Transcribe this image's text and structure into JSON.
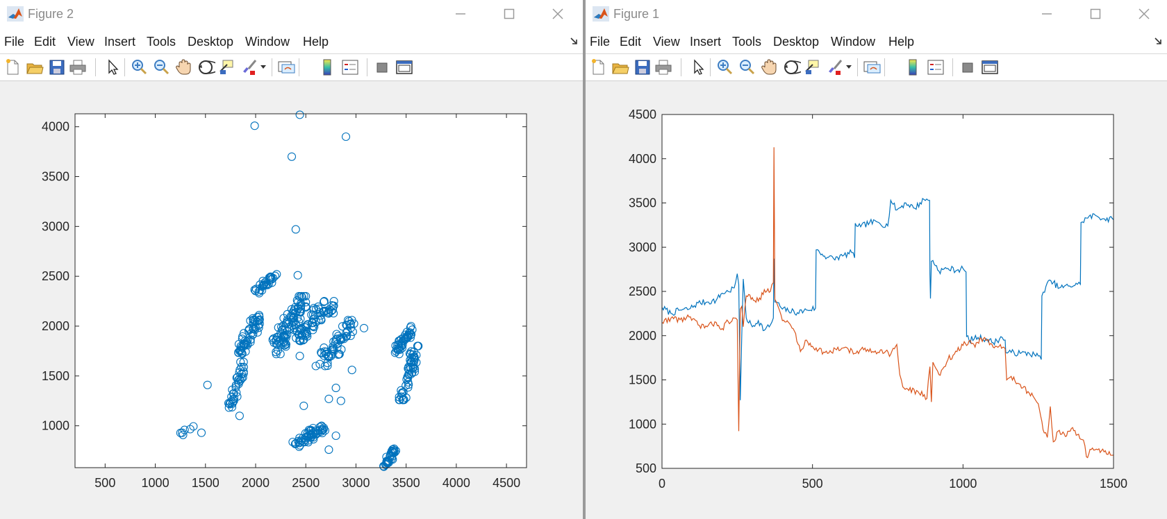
{
  "windows": [
    {
      "id": "left",
      "title": "Figure 2",
      "menus": [
        "File",
        "Edit",
        "View",
        "Insert",
        "Tools",
        "Desktop",
        "Window",
        "Help"
      ],
      "chart_data": {
        "type": "scatter",
        "title": "",
        "xlabel": "",
        "ylabel": "",
        "xlim": [
          200,
          4700
        ],
        "ylim": [
          580,
          4130
        ],
        "xticks": [
          500,
          1000,
          1500,
          2000,
          2500,
          3000,
          3500,
          4000,
          4500
        ],
        "yticks": [
          1000,
          1500,
          2000,
          2500,
          3000,
          3500,
          4000
        ],
        "grid": false,
        "marker_color": "#0072bd",
        "clusters": [
          {
            "x": [
              1250,
              1380
            ],
            "y": [
              900,
              1000
            ],
            "n": 6
          },
          {
            "x": [
              1730,
              1880
            ],
            "y": [
              1120,
              1640
            ],
            "n": 40
          },
          {
            "x": [
              1820,
              2040
            ],
            "y": [
              1700,
              2110
            ],
            "n": 55
          },
          {
            "x": [
              1990,
              2200
            ],
            "y": [
              2330,
              2520
            ],
            "n": 30
          },
          {
            "x": [
              2170,
              2500
            ],
            "y": [
              1720,
              2300
            ],
            "n": 90
          },
          {
            "x": [
              2350,
              2780
            ],
            "y": [
              1850,
              2250
            ],
            "n": 70
          },
          {
            "x": [
              2640,
              2980
            ],
            "y": [
              1600,
              2060
            ],
            "n": 60
          },
          {
            "x": [
              2370,
              2700
            ],
            "y": [
              790,
              1000
            ],
            "n": 55
          },
          {
            "x": [
              3270,
              3400
            ],
            "y": [
              590,
              770
            ],
            "n": 30
          },
          {
            "x": [
              3390,
              3580
            ],
            "y": [
              1720,
              2000
            ],
            "n": 40
          },
          {
            "x": [
              3430,
              3630
            ],
            "y": [
              1260,
              1800
            ],
            "n": 55
          }
        ],
        "points": [
          {
            "x": 1990,
            "y": 4010
          },
          {
            "x": 2440,
            "y": 4120
          },
          {
            "x": 2900,
            "y": 3900
          },
          {
            "x": 2360,
            "y": 3700
          },
          {
            "x": 2400,
            "y": 2970
          },
          {
            "x": 1520,
            "y": 1410
          },
          {
            "x": 1460,
            "y": 930
          },
          {
            "x": 1840,
            "y": 1100
          },
          {
            "x": 2480,
            "y": 1200
          },
          {
            "x": 2730,
            "y": 1270
          },
          {
            "x": 2850,
            "y": 1250
          },
          {
            "x": 2800,
            "y": 1380
          },
          {
            "x": 2960,
            "y": 1560
          },
          {
            "x": 2800,
            "y": 900
          },
          {
            "x": 2730,
            "y": 760
          },
          {
            "x": 2420,
            "y": 2510
          },
          {
            "x": 3080,
            "y": 1980
          },
          {
            "x": 2210,
            "y": 2520
          },
          {
            "x": 2440,
            "y": 1700
          },
          {
            "x": 2600,
            "y": 1600
          }
        ]
      }
    },
    {
      "id": "right",
      "title": "Figure 1",
      "menus": [
        "File",
        "Edit",
        "View",
        "Insert",
        "Tools",
        "Desktop",
        "Window",
        "Help"
      ],
      "chart_data": {
        "type": "line",
        "title": "",
        "xlabel": "",
        "ylabel": "",
        "xlim": [
          0,
          1500
        ],
        "ylim": [
          500,
          4500
        ],
        "xticks": [
          0,
          500,
          1000,
          1500
        ],
        "yticks": [
          500,
          1000,
          1500,
          2000,
          2500,
          3000,
          3500,
          4000,
          4500
        ],
        "grid": false,
        "series": [
          {
            "color": "#0072bd",
            "x": [
              0,
              30,
              60,
              90,
              120,
              150,
              180,
              200,
              220,
              240,
              250,
              255,
              260,
              270,
              280,
              300,
              320,
              340,
              360,
              370,
              372,
              375,
              380,
              400,
              420,
              450,
              480,
              510,
              512,
              540,
              570,
              600,
              630,
              640,
              642,
              660,
              690,
              720,
              750,
              760,
              780,
              810,
              840,
              870,
              889,
              890,
              892,
              895,
              900,
              920,
              950,
              980,
              1000,
              1010,
              1012,
              1020,
              1050,
              1080,
              1100,
              1130,
              1140,
              1142,
              1160,
              1190,
              1220,
              1250,
              1260,
              1262,
              1280,
              1300,
              1320,
              1350,
              1380,
              1390,
              1392,
              1410,
              1440,
              1470,
              1500
            ],
            "y": [
              2320,
              2250,
              2290,
              2300,
              2370,
              2380,
              2400,
              2480,
              2500,
              2540,
              2700,
              2580,
              1270,
              2640,
              2200,
              2100,
              2170,
              2060,
              2120,
              2200,
              2870,
              2380,
              2380,
              2300,
              2280,
              2260,
              2290,
              2310,
              2970,
              2900,
              2870,
              2900,
              2940,
              2880,
              3270,
              3230,
              3280,
              3280,
              3240,
              3530,
              3420,
              3500,
              3440,
              3540,
              3530,
              2700,
              2420,
              2840,
              2850,
              2730,
              2760,
              2740,
              2760,
              2720,
              1990,
              1950,
              1980,
              1960,
              1920,
              1980,
              1950,
              1810,
              1810,
              1800,
              1800,
              1770,
              1730,
              2450,
              2600,
              2600,
              2540,
              2560,
              2580,
              2580,
              3280,
              3330,
              3360,
              3320,
              3310
            ]
          },
          {
            "color": "#d95319",
            "x": [
              0,
              30,
              60,
              90,
              120,
              150,
              180,
              200,
              220,
              240,
              250,
              255,
              260,
              265,
              270,
              280,
              300,
              320,
              340,
              360,
              370,
              372,
              375,
              380,
              390,
              400,
              420,
              440,
              460,
              480,
              500,
              520,
              550,
              580,
              610,
              640,
              670,
              700,
              730,
              760,
              780,
              790,
              800,
              820,
              850,
              880,
              890,
              895,
              900,
              910,
              920,
              950,
              980,
              1000,
              1020,
              1040,
              1060,
              1080,
              1100,
              1120,
              1140,
              1145,
              1160,
              1190,
              1220,
              1250,
              1270,
              1280,
              1290,
              1300,
              1320,
              1340,
              1360,
              1380,
              1400,
              1410,
              1430,
              1460,
              1490,
              1500
            ],
            "y": [
              2150,
              2200,
              2180,
              2210,
              2120,
              2100,
              2150,
              2080,
              2160,
              2200,
              2180,
              920,
              2300,
              2330,
              2100,
              2450,
              2430,
              2390,
              2520,
              2500,
              2600,
              4130,
              2410,
              2380,
              2290,
              2170,
              2150,
              2050,
              1820,
              1950,
              1880,
              1840,
              1800,
              1840,
              1870,
              1800,
              1840,
              1820,
              1840,
              1790,
              1900,
              1560,
              1420,
              1380,
              1370,
              1290,
              1650,
              1250,
              1700,
              1630,
              1560,
              1730,
              1820,
              1890,
              1940,
              1870,
              1970,
              1950,
              1870,
              1880,
              1850,
              1500,
              1540,
              1450,
              1350,
              1230,
              900,
              850,
              1200,
              800,
              930,
              860,
              950,
              880,
              820,
              630,
              730,
              700,
              650,
              650
            ]
          }
        ]
      }
    }
  ]
}
